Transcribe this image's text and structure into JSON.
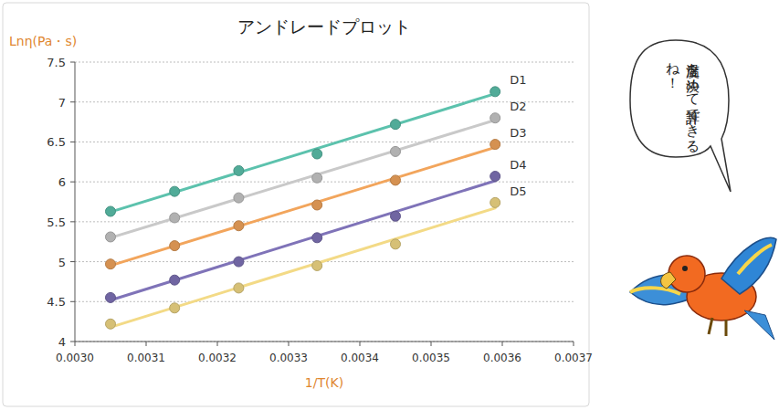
{
  "chart_data": {
    "type": "scatter",
    "title": "アンドレードプロット",
    "x_label": "1/T(K)",
    "y_label": "Lnη(Pa・s)",
    "x": [
      0.00305,
      0.00314,
      0.00323,
      0.00334,
      0.00345,
      0.00359
    ],
    "series": [
      {
        "name": "D1",
        "color": "#5cc2ad",
        "values": [
          5.63,
          5.88,
          6.14,
          6.35,
          6.72,
          7.13
        ]
      },
      {
        "name": "D2",
        "color": "#c9c9c9",
        "values": [
          5.31,
          5.55,
          5.8,
          6.05,
          6.38,
          6.8
        ]
      },
      {
        "name": "D3",
        "color": "#f2a55c",
        "values": [
          4.97,
          5.2,
          5.45,
          5.71,
          6.02,
          6.47
        ]
      },
      {
        "name": "D4",
        "color": "#7f73b8",
        "values": [
          4.55,
          4.77,
          5.0,
          5.3,
          5.57,
          6.07
        ]
      },
      {
        "name": "D5",
        "color": "#f3da86",
        "values": [
          4.22,
          4.42,
          4.67,
          4.95,
          5.22,
          5.74
        ]
      }
    ],
    "xlim": [
      0.003,
      0.0037
    ],
    "ylim": [
      4,
      7.5
    ],
    "xticks": [
      {
        "value": 0.003,
        "label": "0.0030"
      },
      {
        "value": 0.0031,
        "label": "0.0031"
      },
      {
        "value": 0.0032,
        "label": "0.0032"
      },
      {
        "value": 0.0033,
        "label": "0.0033"
      },
      {
        "value": 0.0034,
        "label": "0.0034"
      },
      {
        "value": 0.0035,
        "label": "0.0035"
      },
      {
        "value": 0.0036,
        "label": "0.0036"
      },
      {
        "value": 0.0037,
        "label": "0.0037"
      }
    ],
    "yticks": [
      4,
      4.5,
      5,
      5.5,
      6,
      6.5,
      7,
      7.5
    ],
    "grid": true,
    "legend": "right",
    "marker": "circle",
    "annotations": [
      "温度を決めて計算できるね！"
    ]
  }
}
